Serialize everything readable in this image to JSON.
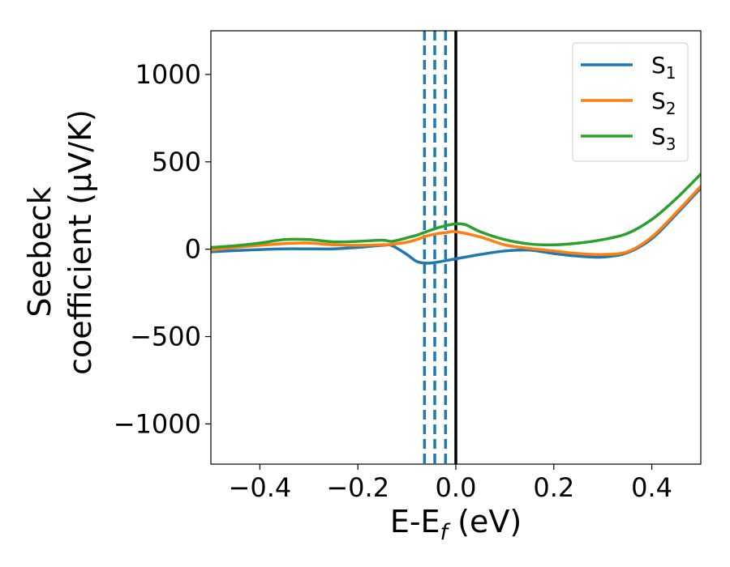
{
  "chart_data": {
    "type": "line",
    "xlabel": "E-E",
    "xlabel_sub": "f",
    "xlabel_unit": " (eV)",
    "ylabel_line1": "Seebeck",
    "ylabel_line2": "coefficient  (μV/K)",
    "xlim": [
      -0.5,
      0.5
    ],
    "ylim": [
      -1230,
      1250
    ],
    "xticks": [
      -0.4,
      -0.2,
      0.0,
      0.2,
      0.4
    ],
    "xtick_labels": [
      "−0.4",
      "−0.2",
      "0.0",
      "0.2",
      "0.4"
    ],
    "yticks": [
      -1000,
      -500,
      0,
      500,
      1000
    ],
    "ytick_labels": [
      "−1000",
      "−500",
      "0",
      "500",
      "1000"
    ],
    "grid": false,
    "legend_position": "top-right",
    "vlines_dashed": {
      "x": [
        -0.064,
        -0.043,
        -0.021
      ],
      "color": "#1f77b4"
    },
    "vline_solid": {
      "x": 0.0,
      "color": "#000000"
    },
    "series": [
      {
        "name": "S",
        "name_sub": "1",
        "color": "#1f77b4",
        "x": [
          -0.5,
          -0.45,
          -0.4,
          -0.35,
          -0.3,
          -0.25,
          -0.2,
          -0.15,
          -0.13,
          -0.1,
          -0.08,
          -0.06,
          -0.04,
          -0.02,
          0.0,
          0.05,
          0.1,
          0.15,
          0.2,
          0.25,
          0.3,
          0.35,
          0.4,
          0.45,
          0.5
        ],
        "y": [
          -15,
          -8,
          -2,
          2,
          2,
          2,
          10,
          22,
          20,
          -30,
          -70,
          -80,
          -75,
          -65,
          -55,
          -30,
          -10,
          -5,
          -25,
          -40,
          -45,
          -20,
          60,
          200,
          350
        ]
      },
      {
        "name": "S",
        "name_sub": "2",
        "color": "#ff7f0e",
        "x": [
          -0.5,
          -0.45,
          -0.4,
          -0.35,
          -0.3,
          -0.25,
          -0.2,
          -0.15,
          -0.13,
          -0.1,
          -0.08,
          -0.06,
          -0.04,
          -0.02,
          0.0,
          0.05,
          0.1,
          0.15,
          0.2,
          0.25,
          0.3,
          0.35,
          0.4,
          0.45,
          0.5
        ],
        "y": [
          -5,
          10,
          22,
          32,
          35,
          25,
          22,
          25,
          28,
          40,
          55,
          75,
          88,
          95,
          100,
          70,
          25,
          5,
          -10,
          -25,
          -30,
          -15,
          70,
          210,
          360
        ]
      },
      {
        "name": "S",
        "name_sub": "3",
        "color": "#2ca02c",
        "x": [
          -0.5,
          -0.45,
          -0.4,
          -0.35,
          -0.3,
          -0.25,
          -0.2,
          -0.15,
          -0.13,
          -0.1,
          -0.08,
          -0.06,
          -0.04,
          -0.02,
          0.0,
          0.02,
          0.05,
          0.1,
          0.15,
          0.2,
          0.25,
          0.3,
          0.35,
          0.4,
          0.45,
          0.5
        ],
        "y": [
          10,
          20,
          35,
          55,
          55,
          42,
          45,
          52,
          45,
          65,
          80,
          100,
          120,
          135,
          145,
          140,
          100,
          55,
          30,
          25,
          35,
          55,
          90,
          170,
          290,
          430
        ]
      }
    ]
  }
}
